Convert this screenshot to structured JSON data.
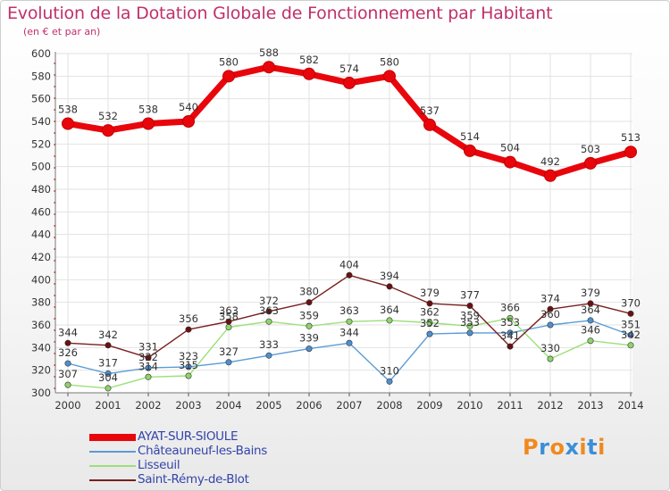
{
  "title": "Evolution de la Dotation Globale de Fonctionnement par Habitant",
  "subtitle": "(en € et par an)",
  "logo": {
    "text": "Proxiti",
    "colors": [
      "#f08a1e",
      "#3d8ed8",
      "#f08a1e",
      "#3d8ed8",
      "#f08a1e",
      "#3d8ed8",
      "#f08a1e"
    ]
  },
  "chart_data": {
    "type": "line",
    "x": [
      "2000",
      "2001",
      "2002",
      "2003",
      "2004",
      "2005",
      "2006",
      "2007",
      "2008",
      "2009",
      "2010",
      "2011",
      "2012",
      "2013",
      "2014"
    ],
    "ylim": [
      300,
      600
    ],
    "yticks": [
      300,
      320,
      340,
      360,
      380,
      400,
      420,
      440,
      460,
      480,
      500,
      520,
      540,
      560,
      580,
      600
    ],
    "grid": true,
    "legend": "bottom-left",
    "series": [
      {
        "name": "AYAT-SUR-SIOULE",
        "color": "#e8060c",
        "marker": "#e8060c",
        "values": [
          538,
          532,
          538,
          540,
          580,
          588,
          582,
          574,
          580,
          537,
          514,
          504,
          492,
          503,
          513
        ],
        "labels": [
          "538",
          "532",
          "538",
          "540",
          "580",
          "588",
          "582",
          "574",
          "580",
          "537",
          "514",
          "504",
          "492",
          "503",
          "513"
        ]
      },
      {
        "name": "Châteauneuf-les-Bains",
        "color": "#5b9bd5",
        "marker": "#4f8fcf",
        "values": [
          326,
          317,
          322,
          323,
          327,
          333,
          339,
          344,
          310,
          352,
          353,
          353,
          360,
          364,
          351
        ],
        "labels": [
          "326",
          "317",
          "322",
          "323",
          "327",
          "333",
          "339",
          "344",
          "310",
          "352",
          "353",
          "353",
          "360",
          "364",
          "351"
        ]
      },
      {
        "name": "Lisseuil",
        "color": "#9be07a",
        "marker": "#8ed46a",
        "values": [
          307,
          304,
          314,
          315,
          358,
          363,
          359,
          363,
          364,
          362,
          359,
          366,
          330,
          346,
          342
        ],
        "labels": [
          "307",
          "304",
          "314",
          "315",
          "358",
          "363",
          "359",
          "363",
          "364",
          "362",
          "359",
          "366",
          "330",
          "346",
          "342"
        ]
      },
      {
        "name": "Saint-Rémy-de-Blot",
        "color": "#7a1f1f",
        "marker": "#6a1010",
        "values": [
          344,
          342,
          331,
          356,
          363,
          372,
          380,
          404,
          394,
          379,
          377,
          341,
          374,
          379,
          370
        ],
        "labels": [
          "344",
          "342",
          "331",
          "356",
          "363",
          "372",
          "380",
          "404",
          "394",
          "379",
          "377",
          "341",
          "374",
          "379",
          "370"
        ]
      }
    ]
  }
}
